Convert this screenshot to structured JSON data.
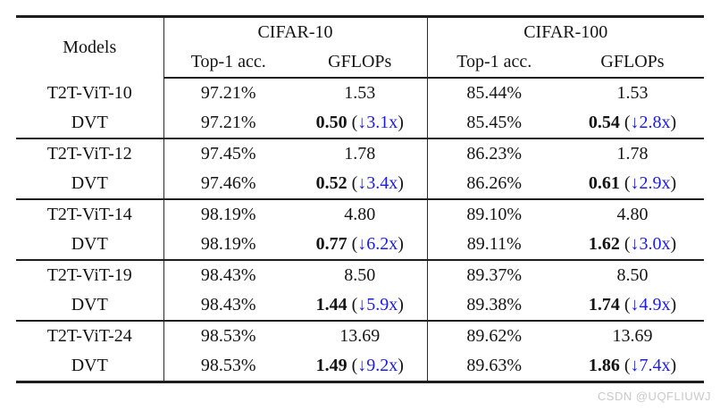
{
  "table": {
    "header": {
      "models": "Models",
      "groups": [
        {
          "label": "CIFAR-10",
          "sub": [
            "Top-1 acc.",
            "GFLOPs"
          ]
        },
        {
          "label": "CIFAR-100",
          "sub": [
            "Top-1 acc.",
            "GFLOPs"
          ]
        }
      ]
    },
    "groups": [
      {
        "base": {
          "model": "T2T-ViT-10",
          "c10_acc": "97.21%",
          "c10_gflops": "1.53",
          "c100_acc": "85.44%",
          "c100_gflops": "1.53"
        },
        "dvt": {
          "model": "DVT",
          "c10_acc": "97.21%",
          "c10_gflops": "0.50",
          "c10_drop": "↓3.1x",
          "c100_acc": "85.45%",
          "c100_gflops": "0.54",
          "c100_drop": "↓2.8x"
        }
      },
      {
        "base": {
          "model": "T2T-ViT-12",
          "c10_acc": "97.45%",
          "c10_gflops": "1.78",
          "c100_acc": "86.23%",
          "c100_gflops": "1.78"
        },
        "dvt": {
          "model": "DVT",
          "c10_acc": "97.46%",
          "c10_gflops": "0.52",
          "c10_drop": "↓3.4x",
          "c100_acc": "86.26%",
          "c100_gflops": "0.61",
          "c100_drop": "↓2.9x"
        }
      },
      {
        "base": {
          "model": "T2T-ViT-14",
          "c10_acc": "98.19%",
          "c10_gflops": "4.80",
          "c100_acc": "89.10%",
          "c100_gflops": "4.80"
        },
        "dvt": {
          "model": "DVT",
          "c10_acc": "98.19%",
          "c10_gflops": "0.77",
          "c10_drop": "↓6.2x",
          "c100_acc": "89.11%",
          "c100_gflops": "1.62",
          "c100_drop": "↓3.0x"
        }
      },
      {
        "base": {
          "model": "T2T-ViT-19",
          "c10_acc": "98.43%",
          "c10_gflops": "8.50",
          "c100_acc": "89.37%",
          "c100_gflops": "8.50"
        },
        "dvt": {
          "model": "DVT",
          "c10_acc": "98.43%",
          "c10_gflops": "1.44",
          "c10_drop": "↓5.9x",
          "c100_acc": "89.38%",
          "c100_gflops": "1.74",
          "c100_drop": "↓4.9x"
        }
      },
      {
        "base": {
          "model": "T2T-ViT-24",
          "c10_acc": "98.53%",
          "c10_gflops": "13.69",
          "c100_acc": "89.62%",
          "c100_gflops": "13.69"
        },
        "dvt": {
          "model": "DVT",
          "c10_acc": "98.53%",
          "c10_gflops": "1.49",
          "c10_drop": "↓9.2x",
          "c100_acc": "89.63%",
          "c100_gflops": "1.86",
          "c100_drop": "↓7.4x"
        }
      }
    ]
  },
  "punctuation": {
    "open": "(",
    "close": ")"
  },
  "watermark": "CSDN @UQFLIUWJ",
  "colors": {
    "highlight_blue": "#1c1ce8",
    "rule": "#1e1e1e",
    "text": "#141414"
  }
}
